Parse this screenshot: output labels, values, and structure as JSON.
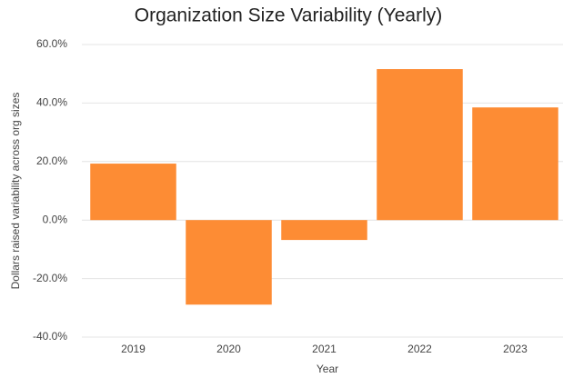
{
  "chart_data": {
    "type": "bar",
    "title": "Organization Size Variability (Yearly)",
    "x_label": "Year",
    "y_label": "Dollars raised variability across org sizes",
    "categories": [
      "2019",
      "2020",
      "2021",
      "2022",
      "2023"
    ],
    "values": [
      19.3,
      -28.9,
      -6.8,
      51.6,
      38.5
    ],
    "color": "#fd8c34",
    "ylim": [
      -40,
      60
    ],
    "yticks": [
      {
        "value": -40,
        "label": "-40.0%"
      },
      {
        "value": -20,
        "label": "-20.0%"
      },
      {
        "value": 0,
        "label": "0.0%"
      },
      {
        "value": 20,
        "label": "20.0%"
      },
      {
        "value": 40,
        "label": "40.0%"
      },
      {
        "value": 60,
        "label": "60.0%"
      }
    ],
    "grid": true
  }
}
